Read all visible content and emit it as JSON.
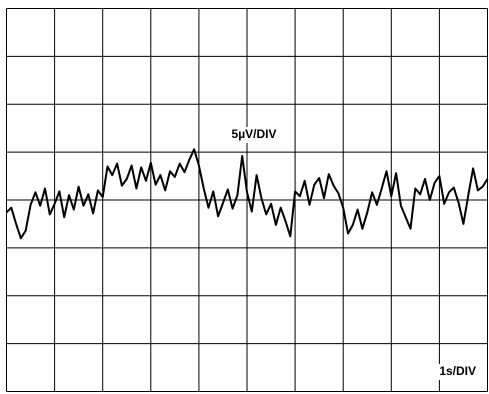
{
  "chart_data": {
    "type": "line",
    "annotations": [
      "5µV/DIV",
      "1s/DIV"
    ],
    "x": [
      0,
      0.1,
      0.2,
      0.3,
      0.4,
      0.5,
      0.6,
      0.7,
      0.8,
      0.9,
      1,
      1.1,
      1.2,
      1.3,
      1.4,
      1.5,
      1.6,
      1.7,
      1.8,
      1.9,
      2,
      2.1,
      2.2,
      2.3,
      2.4,
      2.5,
      2.6,
      2.7,
      2.8,
      2.9,
      3,
      3.1,
      3.2,
      3.3,
      3.4,
      3.5,
      3.6,
      3.7,
      3.8,
      3.9,
      4,
      4.1,
      4.2,
      4.3,
      4.4,
      4.5,
      4.6,
      4.7,
      4.8,
      4.9,
      5,
      5.1,
      5.2,
      5.3,
      5.4,
      5.5,
      5.6,
      5.7,
      5.8,
      5.9,
      6,
      6.1,
      6.2,
      6.3,
      6.4,
      6.5,
      6.6,
      6.7,
      6.8,
      6.9,
      7,
      7.1,
      7.2,
      7.3,
      7.4,
      7.5,
      7.6,
      7.7,
      7.8,
      7.9,
      8,
      8.1,
      8.2,
      8.3,
      8.4,
      8.5,
      8.6,
      8.7,
      8.8,
      8.9,
      9,
      9.1,
      9.2,
      9.3,
      9.4,
      9.5,
      9.6,
      9.7,
      9.8,
      9.9,
      10
    ],
    "values": [
      -1.3,
      -0.8,
      -2.5,
      -4.0,
      -3.2,
      -0.5,
      0.8,
      -0.6,
      1.2,
      -1.5,
      -0.4,
      0.9,
      -1.8,
      0.5,
      -1.0,
      1.4,
      -0.6,
      0.6,
      -1.4,
      1.0,
      0.3,
      3.5,
      2.6,
      3.8,
      1.5,
      2.2,
      3.6,
      1.2,
      3.4,
      2.0,
      3.9,
      1.6,
      2.6,
      1.0,
      3.0,
      2.4,
      3.8,
      2.9,
      4.2,
      5.3,
      3.6,
      1.2,
      -0.8,
      0.9,
      -1.7,
      -0.3,
      1.1,
      -0.9,
      0.5,
      4.6,
      0.8,
      -1.2,
      2.6,
      0.2,
      -1.5,
      -0.4,
      -2.6,
      -0.8,
      -2.2,
      -3.8,
      0.9,
      0.4,
      2.0,
      -0.5,
      1.6,
      2.3,
      0.2,
      2.7,
      1.5,
      0.7,
      -0.8,
      -3.5,
      -2.6,
      -1.0,
      -3.0,
      -1.3,
      0.8,
      -0.5,
      1.2,
      3.0,
      0.4,
      2.8,
      -0.6,
      -1.8,
      -3.0,
      1.2,
      0.6,
      2.2,
      0.0,
      1.8,
      2.5,
      -0.4,
      0.8,
      1.3,
      -0.3,
      -2.5,
      0.5,
      3.3,
      1.0,
      1.4,
      2.2
    ],
    "color": "#000000",
    "xlim": [
      0,
      10
    ],
    "ylim": [
      -20,
      20
    ],
    "xticks": [
      0,
      1,
      2,
      3,
      4,
      5,
      6,
      7,
      8,
      9,
      10
    ],
    "yticks": [
      -20,
      -15,
      -10,
      -5,
      0,
      5,
      10,
      15,
      20
    ],
    "grid": true
  }
}
